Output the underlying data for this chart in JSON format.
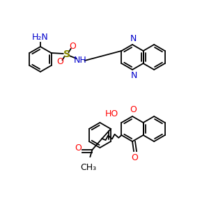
{
  "background_color": "#ffffff",
  "mol1": {
    "nh2_label": "H₂N",
    "nh2_color": "#0000cc",
    "s_label": "S",
    "s_color": "#888800",
    "o_label": "O",
    "o_color": "#ff0000",
    "nh_label": "NH",
    "nh_color": "#0000cc",
    "n_label": "N",
    "n_color": "#0000cc"
  },
  "mol2": {
    "ho_label": "HO",
    "ho_color": "#ff0000",
    "o_label": "O",
    "o_color": "#ff0000",
    "ch3_label": "CH₃",
    "ch3_color": "#000000"
  }
}
